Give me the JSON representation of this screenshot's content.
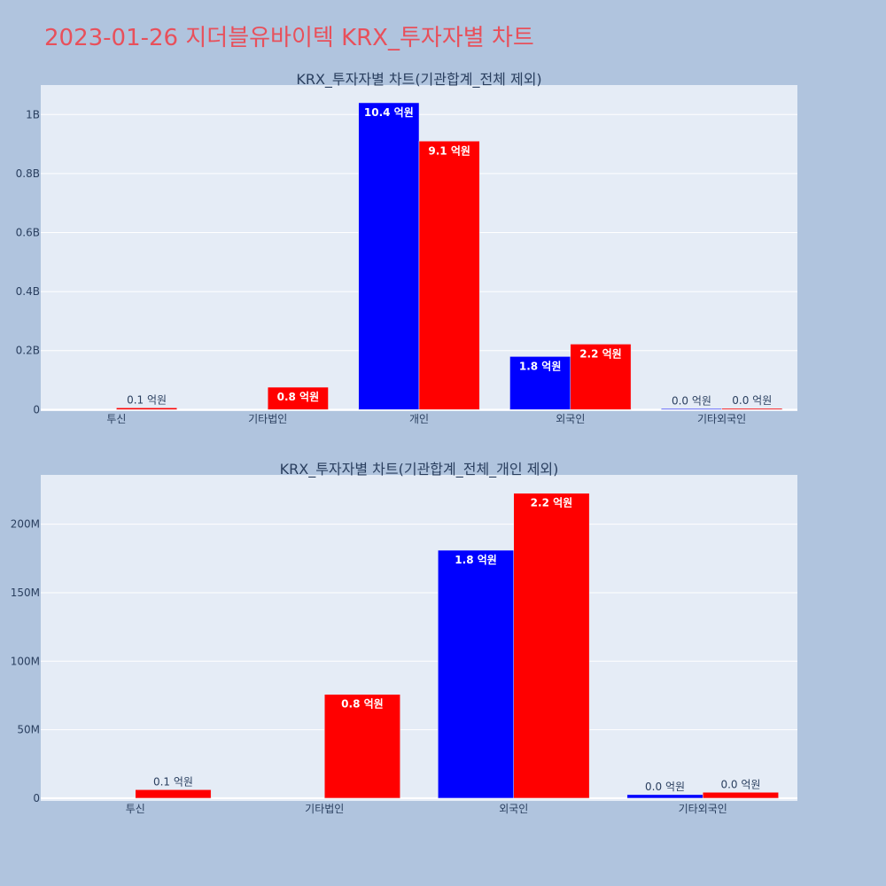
{
  "title": "2023-01-26 지더블유바이텍 KRX_투자자별 차트",
  "chart_data": [
    {
      "type": "bar",
      "title": "KRX_투자자별 차트(기관합계_전체 제외)",
      "categories": [
        "투신",
        "기타법인",
        "개인",
        "외국인",
        "기타외국인"
      ],
      "series": [
        {
          "color": "#0000ff",
          "values": [
            0,
            0,
            1040000000,
            180000000,
            3000000
          ],
          "labels": [
            "",
            "",
            "10.4 억원",
            "1.8 억원",
            "0.0 억원"
          ]
        },
        {
          "color": "#ff0000",
          "values": [
            6000000,
            76000000,
            910000000,
            222000000,
            4000000
          ],
          "labels": [
            "0.1 억원",
            "0.8 억원",
            "9.1 억원",
            "2.2 억원",
            "0.0 억원"
          ]
        }
      ],
      "ylim": [
        -5000000,
        1100000000
      ],
      "yticks": [
        0,
        200000000,
        400000000,
        600000000,
        800000000,
        1000000000
      ],
      "ytick_labels": [
        "0",
        "0.2B",
        "0.4B",
        "0.6B",
        "0.8B",
        "1B"
      ],
      "grid": true
    },
    {
      "type": "bar",
      "title": "KRX_투자자별 차트(기관합계_전체_개인 제외)",
      "categories": [
        "투신",
        "기타법인",
        "외국인",
        "기타외국인"
      ],
      "series": [
        {
          "color": "#0000ff",
          "values": [
            0,
            0,
            181000000,
            2600000
          ],
          "labels": [
            "",
            "",
            "1.8 억원",
            "0.0 억원"
          ]
        },
        {
          "color": "#ff0000",
          "values": [
            6200000,
            75800000,
            222600000,
            4300000
          ],
          "labels": [
            "0.1 억원",
            "0.8 억원",
            "2.2 억원",
            "0.0 억원"
          ]
        }
      ],
      "ylim": [
        -2000000,
        236000000
      ],
      "yticks": [
        0,
        50000000,
        100000000,
        150000000,
        200000000
      ],
      "ytick_labels": [
        "0",
        "50M",
        "100M",
        "150M",
        "200M"
      ],
      "grid": true
    }
  ]
}
